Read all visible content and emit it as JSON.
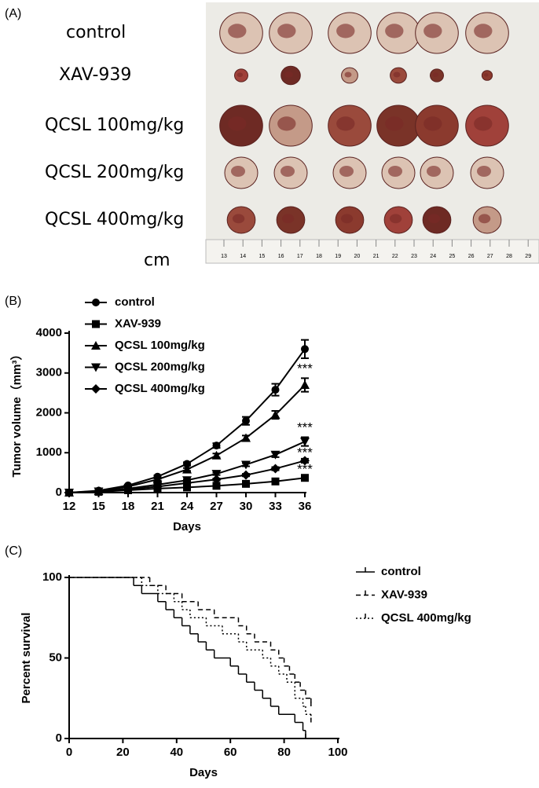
{
  "panel_a": {
    "label": "(A)",
    "groups": [
      "control",
      "XAV-939",
      "QCSL 100mg/kg",
      "QCSL 200mg/kg",
      "QCSL 400mg/kg"
    ],
    "unit": "cm",
    "ruler_labels": [
      "13",
      "14",
      "15",
      "16",
      "17",
      "18",
      "19",
      "20",
      "21",
      "22",
      "23",
      "24",
      "25",
      "26",
      "27",
      "28",
      "29"
    ]
  },
  "chart_data": [
    {
      "type": "line",
      "panel_label": "(B)",
      "xlabel": "Days",
      "ylabel": "Tumor volume（mm³）",
      "x": [
        12,
        15,
        18,
        21,
        24,
        27,
        30,
        33,
        36
      ],
      "xlim": [
        12,
        36
      ],
      "xticks": [
        12,
        15,
        18,
        21,
        24,
        27,
        30,
        33,
        36
      ],
      "ylim": [
        0,
        4000
      ],
      "yticks": [
        0,
        1000,
        2000,
        3000,
        4000
      ],
      "series": [
        {
          "name": "control",
          "color": "#000000",
          "marker": "circle",
          "values": [
            0,
            50,
            180,
            400,
            720,
            1180,
            1800,
            2580,
            3600
          ],
          "errors": [
            0,
            10,
            20,
            30,
            40,
            60,
            100,
            150,
            230
          ]
        },
        {
          "name": "XAV-939",
          "color": "#000000",
          "marker": "square",
          "values": [
            0,
            20,
            60,
            100,
            130,
            170,
            220,
            280,
            370
          ],
          "errors": [
            0,
            5,
            10,
            10,
            15,
            15,
            20,
            25,
            30
          ]
        },
        {
          "name": "QCSL 100mg/kg",
          "color": "#000000",
          "marker": "triangle-up",
          "values": [
            0,
            40,
            150,
            330,
            580,
            930,
            1370,
            1950,
            2700
          ],
          "errors": [
            0,
            10,
            20,
            25,
            35,
            50,
            60,
            100,
            170
          ]
        },
        {
          "name": "QCSL 200mg/kg",
          "color": "#000000",
          "marker": "triangle-down",
          "values": [
            0,
            30,
            100,
            200,
            310,
            470,
            700,
            950,
            1280
          ],
          "errors": [
            0,
            5,
            10,
            15,
            20,
            30,
            40,
            60,
            110
          ]
        },
        {
          "name": "QCSL 400mg/kg",
          "color": "#000000",
          "marker": "diamond",
          "values": [
            0,
            25,
            80,
            150,
            240,
            330,
            440,
            600,
            800
          ],
          "errors": [
            0,
            5,
            10,
            15,
            20,
            25,
            30,
            40,
            50
          ]
        }
      ],
      "annotations": [
        {
          "text": "***",
          "x": 36,
          "y": 3090
        },
        {
          "text": "***",
          "x": 36,
          "y": 1615
        },
        {
          "text": "***",
          "x": 36,
          "y": 985
        },
        {
          "text": "***",
          "x": 36,
          "y": 570
        }
      ]
    },
    {
      "type": "step",
      "panel_label": "(C)",
      "xlabel": "Days",
      "ylabel": "Percent survival",
      "xlim": [
        0,
        100
      ],
      "xticks": [
        0,
        20,
        40,
        60,
        80,
        100
      ],
      "ylim": [
        0,
        100
      ],
      "yticks": [
        0,
        50,
        100
      ],
      "series": [
        {
          "name": "control",
          "color": "#000000",
          "dash": "none",
          "x": [
            0,
            24,
            27,
            33,
            36,
            39,
            42,
            45,
            48,
            51,
            54,
            60,
            63,
            66,
            69,
            72,
            75,
            78,
            84,
            87,
            88
          ],
          "values": [
            100,
            95,
            90,
            85,
            80,
            75,
            70,
            65,
            60,
            55,
            50,
            45,
            40,
            35,
            30,
            25,
            20,
            15,
            10,
            5,
            0
          ]
        },
        {
          "name": "XAV-939",
          "color": "#000000",
          "dash": "6,4",
          "x": [
            0,
            30,
            36,
            42,
            48,
            54,
            63,
            66,
            69,
            75,
            78,
            80,
            82,
            84,
            86,
            88,
            90
          ],
          "values": [
            100,
            95,
            90,
            85,
            80,
            75,
            70,
            65,
            60,
            55,
            50,
            45,
            40,
            35,
            30,
            25,
            20
          ]
        },
        {
          "name": "QCSL 400mg/kg",
          "color": "#000000",
          "dash": "2,3",
          "x": [
            0,
            27,
            33,
            39,
            42,
            45,
            51,
            57,
            63,
            66,
            72,
            75,
            78,
            81,
            84,
            87,
            88,
            90
          ],
          "values": [
            100,
            95,
            90,
            85,
            80,
            75,
            70,
            65,
            60,
            55,
            50,
            45,
            40,
            35,
            25,
            20,
            15,
            10
          ]
        }
      ]
    }
  ]
}
